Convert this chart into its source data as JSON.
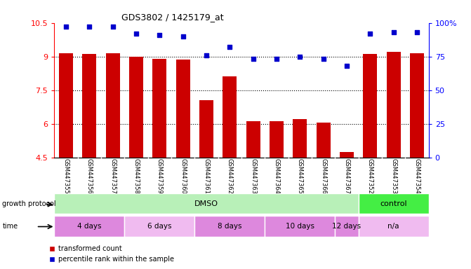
{
  "title": "GDS3802 / 1425179_at",
  "samples": [
    "GSM447355",
    "GSM447356",
    "GSM447357",
    "GSM447358",
    "GSM447359",
    "GSM447360",
    "GSM447361",
    "GSM447362",
    "GSM447363",
    "GSM447364",
    "GSM447365",
    "GSM447366",
    "GSM447367",
    "GSM447352",
    "GSM447353",
    "GSM447354"
  ],
  "transformed_count": [
    9.15,
    9.1,
    9.15,
    9.0,
    8.9,
    8.85,
    7.05,
    8.1,
    6.1,
    6.1,
    6.2,
    6.05,
    4.75,
    9.1,
    9.2,
    9.15
  ],
  "percentile_rank": [
    97,
    97,
    97,
    92,
    91,
    90,
    76,
    82,
    73,
    73,
    75,
    73,
    68,
    92,
    93,
    93
  ],
  "ylim_left": [
    4.5,
    10.5
  ],
  "ylim_right": [
    0,
    100
  ],
  "yticks_left": [
    4.5,
    6.0,
    7.5,
    9.0,
    10.5
  ],
  "ytick_labels_left": [
    "4.5",
    "6",
    "7.5",
    "9",
    "10.5"
  ],
  "yticks_right": [
    0,
    25,
    50,
    75,
    100
  ],
  "ytick_labels_right": [
    "0",
    "25",
    "50",
    "75",
    "100%"
  ],
  "bar_color": "#cc0000",
  "dot_color": "#0000cc",
  "xticklabel_area_color": "#cccccc",
  "protocol_dmso_color": "#b8f0b8",
  "protocol_control_color": "#44ee44",
  "time_color_dark": "#dd88dd",
  "time_color_light": "#f0bbf0",
  "time_groups": [
    {
      "label": "4 days",
      "start": 0,
      "end": 2,
      "dark": true
    },
    {
      "label": "6 days",
      "start": 3,
      "end": 5,
      "dark": false
    },
    {
      "label": "8 days",
      "start": 6,
      "end": 8,
      "dark": true
    },
    {
      "label": "10 days",
      "start": 9,
      "end": 11,
      "dark": true
    },
    {
      "label": "12 days",
      "start": 12,
      "end": 12,
      "dark": true
    },
    {
      "label": "n/a",
      "start": 13,
      "end": 15,
      "dark": false
    }
  ],
  "legend_red": "transformed count",
  "legend_blue": "percentile rank within the sample"
}
